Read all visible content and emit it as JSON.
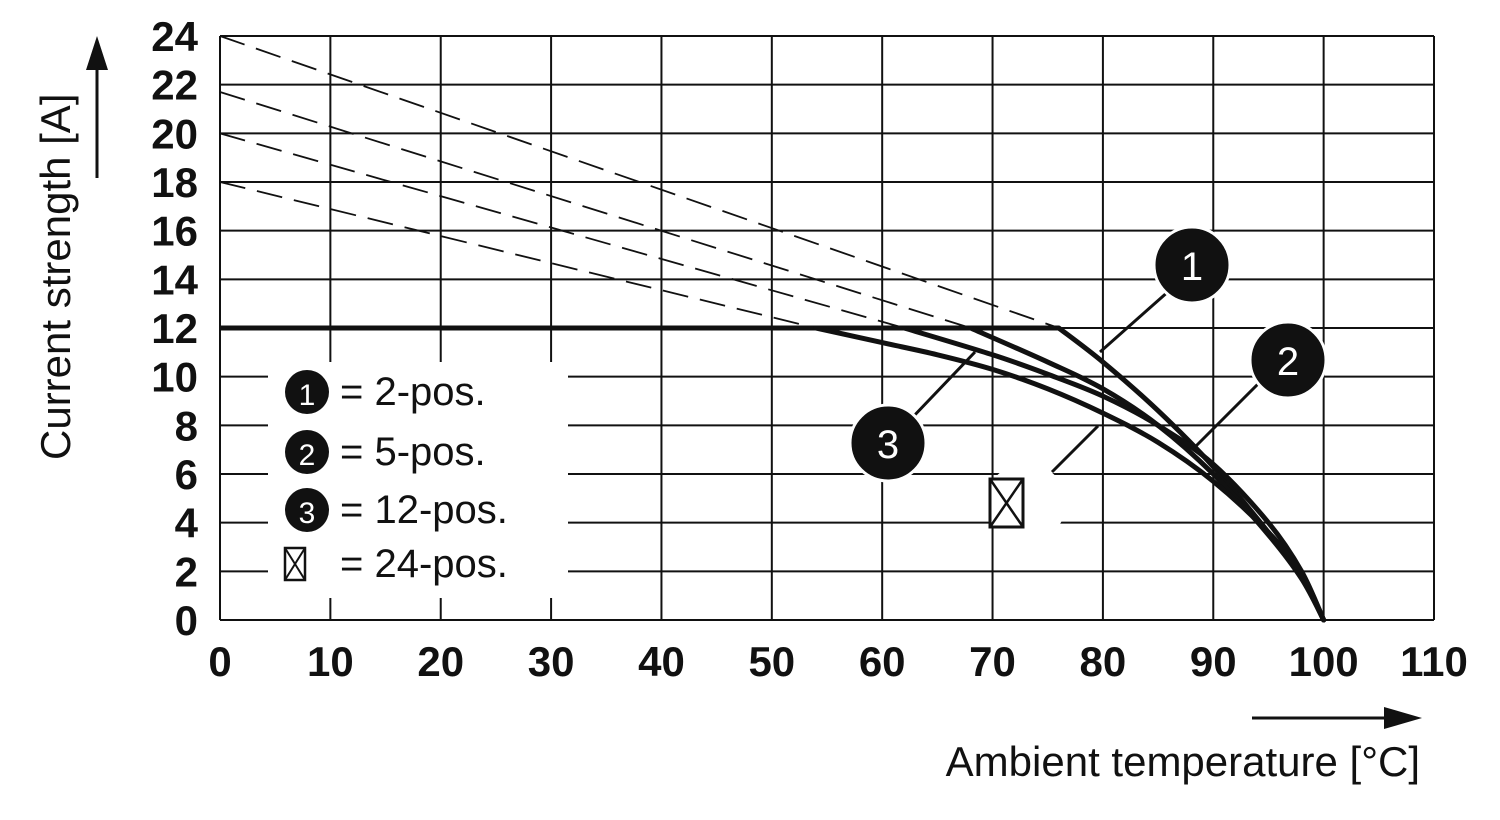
{
  "chart_data": {
    "type": "line",
    "xlabel": "Ambient temperature [°C]",
    "ylabel": "Current strength [A]",
    "xlim": [
      0,
      110
    ],
    "ylim": [
      0,
      24
    ],
    "x_ticks": [
      0,
      10,
      20,
      30,
      40,
      50,
      60,
      70,
      80,
      90,
      100,
      110
    ],
    "y_ticks": [
      0,
      2,
      4,
      6,
      8,
      10,
      12,
      14,
      16,
      18,
      20,
      22,
      24
    ],
    "grid": true,
    "cap_line": {
      "y": 12,
      "x_from": 0,
      "style": "solid"
    },
    "series": [
      {
        "name": "1",
        "legend_label": "= 2-pos.",
        "marker": "filled-circle",
        "x": [
          76,
          80,
          85,
          90,
          95,
          98,
          100
        ],
        "y": [
          12,
          10.6,
          8.6,
          6.3,
          3.6,
          1.8,
          0
        ],
        "extrapolation": {
          "x": [
            0,
            76
          ],
          "y": [
            24,
            12
          ],
          "style": "dashed"
        }
      },
      {
        "name": "2",
        "legend_label": "= 5-pos.",
        "marker": "filled-circle",
        "x": [
          68,
          75,
          80,
          85,
          90,
          95,
          98,
          100
        ],
        "y": [
          12,
          10.6,
          9.5,
          8.0,
          6.0,
          3.5,
          1.7,
          0
        ],
        "extrapolation": {
          "x": [
            0,
            68
          ],
          "y": [
            21.7,
            12
          ],
          "style": "dashed"
        }
      },
      {
        "name": "3",
        "legend_label": "= 12-pos.",
        "marker": "filled-circle",
        "x": [
          62,
          70,
          75,
          80,
          85,
          90,
          95,
          98,
          100
        ],
        "y": [
          12,
          10.9,
          10.1,
          9.2,
          8.0,
          6.4,
          4.0,
          2.0,
          0
        ],
        "extrapolation": {
          "x": [
            0,
            62
          ],
          "y": [
            20,
            12
          ],
          "style": "dashed"
        }
      },
      {
        "name": "",
        "legend_label": "= 24-pos.",
        "marker": "crossed-box",
        "x": [
          54,
          60,
          65,
          70,
          75,
          80,
          85,
          90,
          95,
          98,
          100
        ],
        "y": [
          12,
          11.4,
          10.9,
          10.3,
          9.5,
          8.5,
          7.3,
          5.7,
          3.6,
          1.9,
          0
        ],
        "extrapolation": {
          "x": [
            0,
            54
          ],
          "y": [
            18,
            12
          ],
          "style": "dashed"
        }
      }
    ],
    "legend_position": "bottom-left"
  }
}
